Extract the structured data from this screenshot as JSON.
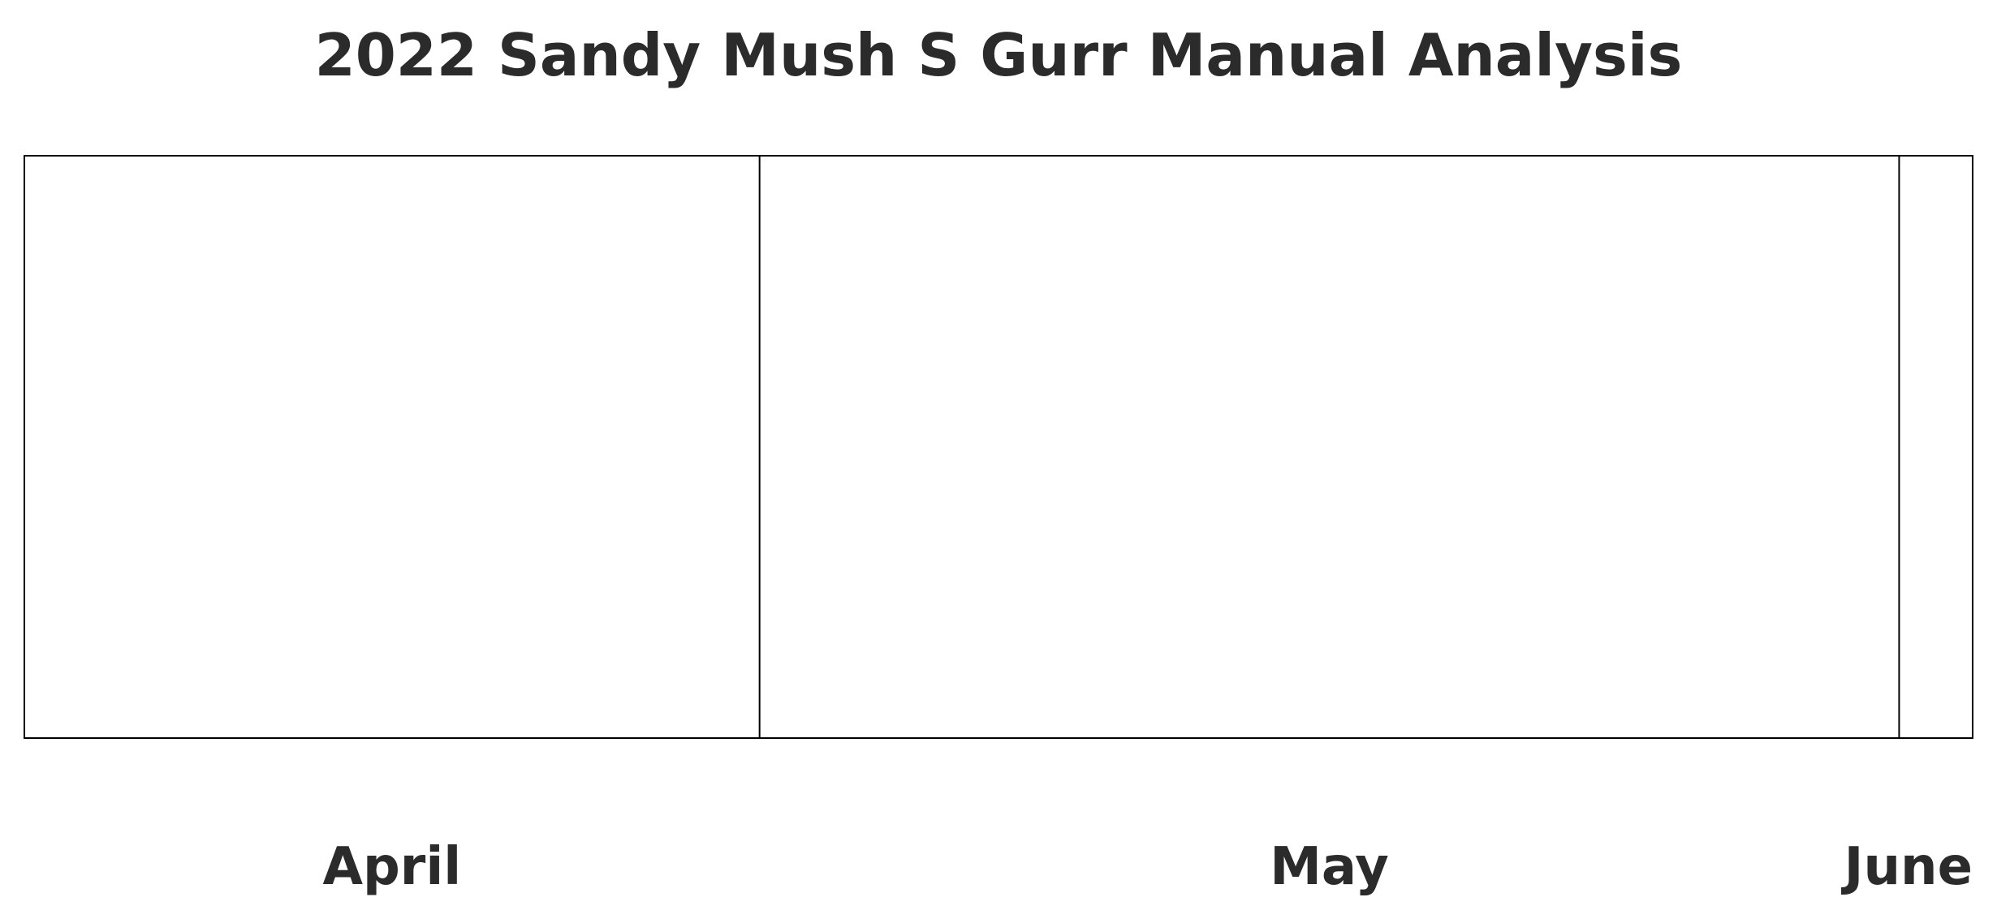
{
  "chart_data": {
    "type": "table",
    "title": "2022 Sandy Mush S Gurr Manual Analysis",
    "months": [
      {
        "label": "April",
        "start": "2022-04-01",
        "end": "2022-04-30"
      },
      {
        "label": "May",
        "start": "2022-05-01",
        "end": "2022-05-31"
      },
      {
        "label": "June",
        "start": "2022-06-01",
        "end": "2022-06-30"
      }
    ],
    "x_range": [
      "2022-04-11",
      "2022-06-03"
    ],
    "series": [],
    "grid": false,
    "colors": {
      "text": "#2b2b2b",
      "border": "#000000",
      "background": "#ffffff"
    }
  }
}
